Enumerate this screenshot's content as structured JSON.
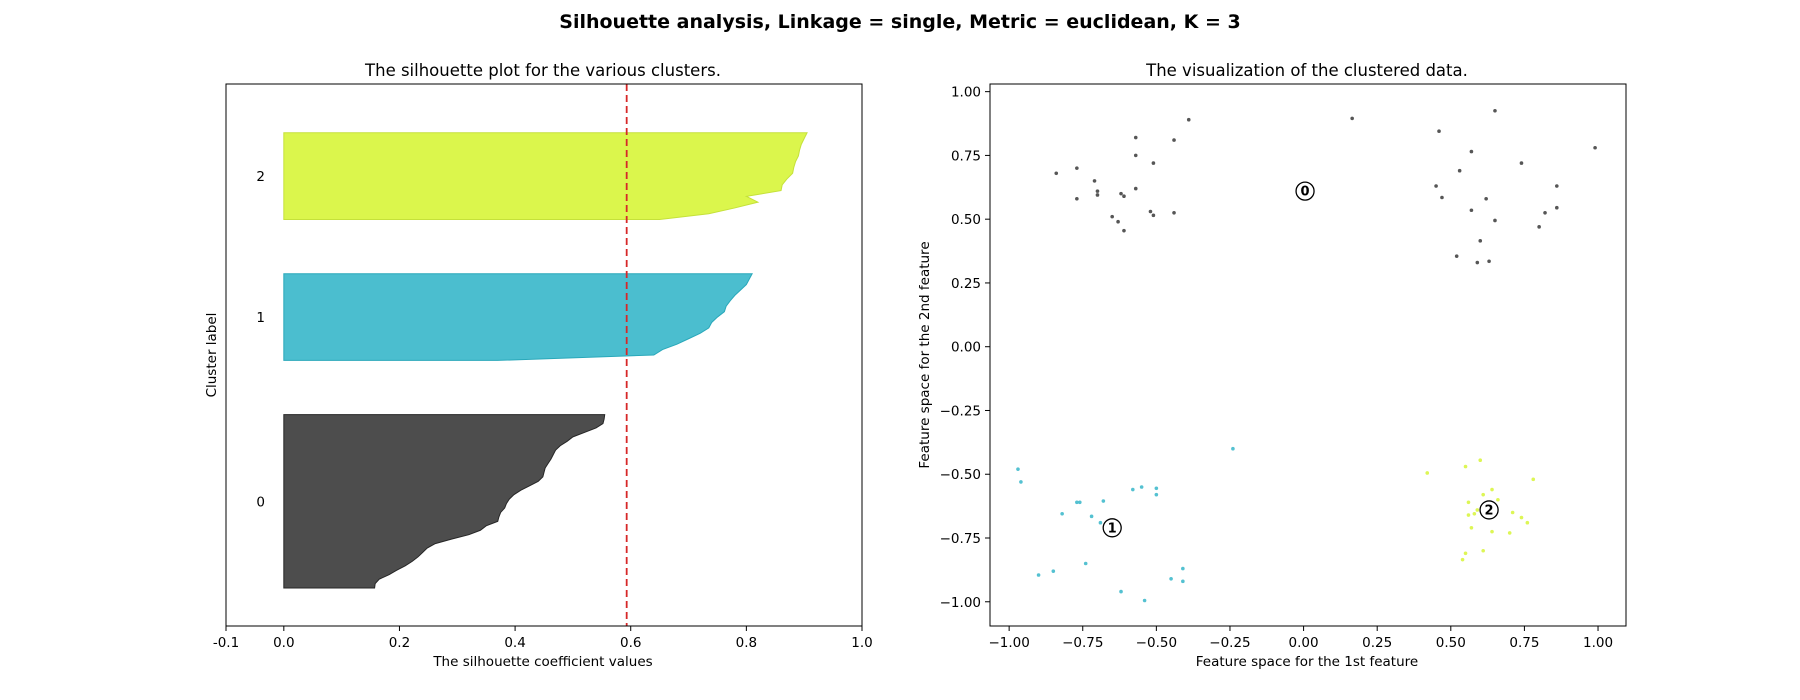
{
  "figure": {
    "suptitle": "Silhouette analysis, Linkage = single, Metric = euclidean, K = 3"
  },
  "chart_data": [
    {
      "type": "area",
      "title": "The silhouette plot for the various clusters.",
      "xlabel": "The silhouette coefficient values",
      "ylabel": "Cluster label",
      "xlim": [
        -0.1,
        1.0
      ],
      "xticks": [
        "-0.1",
        "0.0",
        "0.2",
        "0.4",
        "0.6",
        "0.8",
        "1.0"
      ],
      "xtick_values": [
        -0.1,
        0.0,
        0.2,
        0.4,
        0.6,
        0.8,
        1.0
      ],
      "ylim": [
        0,
        100
      ],
      "average_silhouette": 0.593,
      "average_line_color": "#d62728",
      "clusters": [
        {
          "label": "0",
          "color": "#4d4d4d",
          "edge": "#262626",
          "y_range": [
            7,
            39
          ],
          "values": [
            0.555,
            0.554,
            0.552,
            0.54,
            0.52,
            0.5,
            0.49,
            0.478,
            0.47,
            0.466,
            0.462,
            0.457,
            0.452,
            0.45,
            0.448,
            0.44,
            0.425,
            0.41,
            0.398,
            0.39,
            0.385,
            0.382,
            0.375,
            0.372,
            0.37,
            0.35,
            0.34,
            0.32,
            0.29,
            0.262,
            0.248,
            0.24,
            0.232,
            0.222,
            0.21,
            0.195,
            0.182,
            0.165,
            0.158,
            0.157
          ]
        },
        {
          "label": "1",
          "color": "#4bbecf",
          "edge": "#29a8ba",
          "y_range": [
            49,
            65
          ],
          "values": [
            0.81,
            0.805,
            0.8,
            0.79,
            0.78,
            0.772,
            0.765,
            0.762,
            0.75,
            0.74,
            0.735,
            0.72,
            0.7,
            0.68,
            0.655,
            0.64,
            0.37
          ]
        },
        {
          "label": "2",
          "color": "#dbf64c",
          "edge": "#c5e13a",
          "y_range": [
            75,
            91
          ],
          "values": [
            0.905,
            0.9,
            0.895,
            0.892,
            0.89,
            0.885,
            0.882,
            0.88,
            0.87,
            0.862,
            0.86,
            0.8,
            0.82,
            0.78,
            0.735,
            0.65
          ]
        }
      ]
    },
    {
      "type": "scatter",
      "title": "The visualization of the clustered data.",
      "xlabel": "Feature space for the 1st feature",
      "ylabel": "Feature space for the 2nd feature",
      "xlim": [
        -1.065,
        1.095
      ],
      "ylim": [
        -1.095,
        1.03
      ],
      "xticks": [
        "−1.00",
        "−0.75",
        "−0.50",
        "−0.25",
        "0.00",
        "0.25",
        "0.50",
        "0.75",
        "1.00"
      ],
      "xtick_values": [
        -1.0,
        -0.75,
        -0.5,
        -0.25,
        0.0,
        0.25,
        0.5,
        0.75,
        1.0
      ],
      "yticks": [
        "−1.00",
        "−0.75",
        "−0.50",
        "−0.25",
        "0.00",
        "0.25",
        "0.50",
        "0.75",
        "1.00"
      ],
      "ytick_values": [
        -1.0,
        -0.75,
        -0.5,
        -0.25,
        0.0,
        0.25,
        0.5,
        0.75,
        1.0
      ],
      "series": [
        {
          "label": "0",
          "color": "#4d4d4d",
          "center": [
            0.005,
            0.61
          ],
          "points": [
            [
              -0.39,
              0.89
            ],
            [
              -0.57,
              0.82
            ],
            [
              -0.44,
              0.81
            ],
            [
              -0.57,
              0.75
            ],
            [
              -0.51,
              0.72
            ],
            [
              -0.77,
              0.7
            ],
            [
              -0.84,
              0.68
            ],
            [
              -0.71,
              0.65
            ],
            [
              -0.7,
              0.61
            ],
            [
              -0.57,
              0.62
            ],
            [
              -0.62,
              0.6
            ],
            [
              -0.61,
              0.59
            ],
            [
              -0.7,
              0.595
            ],
            [
              -0.77,
              0.58
            ],
            [
              -0.52,
              0.53
            ],
            [
              -0.65,
              0.51
            ],
            [
              -0.63,
              0.49
            ],
            [
              -0.44,
              0.525
            ],
            [
              -0.51,
              0.515
            ],
            [
              -0.61,
              0.455
            ],
            [
              0.165,
              0.895
            ],
            [
              0.65,
              0.925
            ],
            [
              0.46,
              0.845
            ],
            [
              0.99,
              0.78
            ],
            [
              0.74,
              0.72
            ],
            [
              0.57,
              0.765
            ],
            [
              0.53,
              0.69
            ],
            [
              0.45,
              0.63
            ],
            [
              0.86,
              0.63
            ],
            [
              0.62,
              0.58
            ],
            [
              0.47,
              0.585
            ],
            [
              0.57,
              0.535
            ],
            [
              0.65,
              0.495
            ],
            [
              0.86,
              0.545
            ],
            [
              0.82,
              0.525
            ],
            [
              0.8,
              0.47
            ],
            [
              0.6,
              0.415
            ],
            [
              0.52,
              0.355
            ],
            [
              0.59,
              0.33
            ],
            [
              0.63,
              0.335
            ]
          ]
        },
        {
          "label": "1",
          "color": "#4bbecf",
          "center": [
            -0.65,
            -0.71
          ],
          "points": [
            [
              -0.24,
              -0.4
            ],
            [
              -0.97,
              -0.48
            ],
            [
              -0.96,
              -0.53
            ],
            [
              -0.55,
              -0.55
            ],
            [
              -0.58,
              -0.56
            ],
            [
              -0.5,
              -0.555
            ],
            [
              -0.5,
              -0.58
            ],
            [
              -0.77,
              -0.61
            ],
            [
              -0.76,
              -0.61
            ],
            [
              -0.68,
              -0.605
            ],
            [
              -0.82,
              -0.655
            ],
            [
              -0.72,
              -0.665
            ],
            [
              -0.69,
              -0.69
            ],
            [
              -0.74,
              -0.85
            ],
            [
              -0.85,
              -0.88
            ],
            [
              -0.9,
              -0.895
            ],
            [
              -0.41,
              -0.87
            ],
            [
              -0.45,
              -0.91
            ],
            [
              -0.41,
              -0.92
            ],
            [
              -0.62,
              -0.96
            ],
            [
              -0.54,
              -0.995
            ]
          ]
        },
        {
          "label": "2",
          "color": "#dbf64c",
          "center": [
            0.63,
            -0.64
          ],
          "points": [
            [
              0.6,
              -0.445
            ],
            [
              0.42,
              -0.495
            ],
            [
              0.55,
              -0.47
            ],
            [
              0.78,
              -0.52
            ],
            [
              0.64,
              -0.56
            ],
            [
              0.61,
              -0.58
            ],
            [
              0.66,
              -0.6
            ],
            [
              0.56,
              -0.61
            ],
            [
              0.59,
              -0.64
            ],
            [
              0.63,
              -0.62
            ],
            [
              0.58,
              -0.655
            ],
            [
              0.56,
              -0.66
            ],
            [
              0.71,
              -0.65
            ],
            [
              0.74,
              -0.67
            ],
            [
              0.76,
              -0.69
            ],
            [
              0.57,
              -0.71
            ],
            [
              0.64,
              -0.725
            ],
            [
              0.7,
              -0.73
            ],
            [
              0.61,
              -0.8
            ],
            [
              0.55,
              -0.81
            ],
            [
              0.54,
              -0.835
            ]
          ]
        }
      ]
    }
  ]
}
